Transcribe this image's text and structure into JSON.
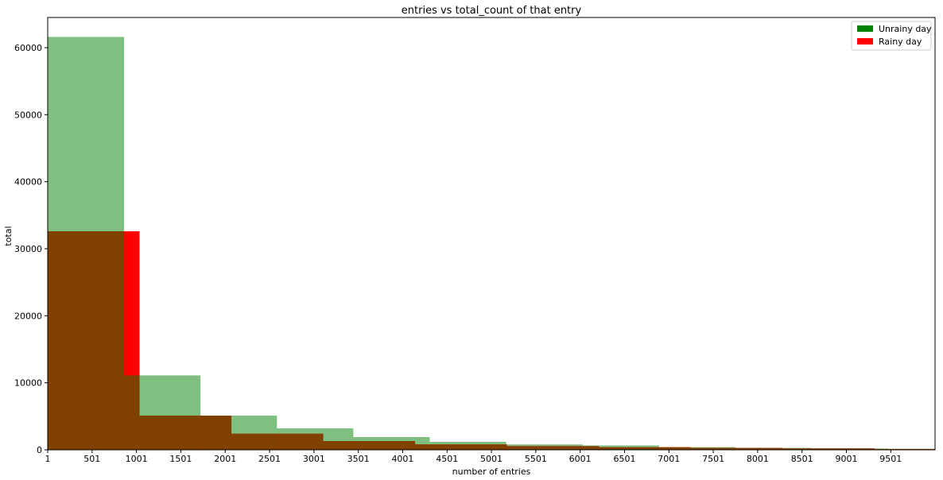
{
  "chart_data": {
    "type": "bar",
    "title": "entries vs total_count of that entry",
    "xlabel": "number of entries",
    "ylabel": "total",
    "xlim": [
      1,
      10000
    ],
    "ylim": [
      0,
      64500
    ],
    "x_ticks": [
      1,
      501,
      1001,
      1501,
      2001,
      2501,
      3001,
      3501,
      4001,
      4501,
      5001,
      5501,
      6001,
      6501,
      7001,
      7501,
      8001,
      8501,
      9001,
      9501
    ],
    "y_ticks": [
      0,
      10000,
      20000,
      30000,
      40000,
      50000,
      60000
    ],
    "grid": false,
    "legend_position": "top-right",
    "series": [
      {
        "name": "Unrainy day",
        "color": "#008000",
        "opacity": 0.5,
        "bins": [
          {
            "x0": 1,
            "x1": 862,
            "value": 61600
          },
          {
            "x0": 862,
            "x1": 1723,
            "value": 11100
          },
          {
            "x0": 1723,
            "x1": 2584,
            "value": 5100
          },
          {
            "x0": 2584,
            "x1": 3445,
            "value": 3200
          },
          {
            "x0": 3445,
            "x1": 4306,
            "value": 1900
          },
          {
            "x0": 4306,
            "x1": 5167,
            "value": 1200
          },
          {
            "x0": 5167,
            "x1": 6028,
            "value": 800
          },
          {
            "x0": 6028,
            "x1": 6889,
            "value": 650
          },
          {
            "x0": 6889,
            "x1": 7750,
            "value": 400
          },
          {
            "x0": 7750,
            "x1": 8611,
            "value": 280
          },
          {
            "x0": 8611,
            "x1": 9472,
            "value": 200
          },
          {
            "x0": 9472,
            "x1": 10000,
            "value": 150
          }
        ]
      },
      {
        "name": "Rainy day",
        "color": "#ff0000",
        "opacity": 1.0,
        "bins": [
          {
            "x0": 1,
            "x1": 1036,
            "value": 32600
          },
          {
            "x0": 1036,
            "x1": 2071,
            "value": 5100
          },
          {
            "x0": 2071,
            "x1": 3106,
            "value": 2400
          },
          {
            "x0": 3106,
            "x1": 4141,
            "value": 1300
          },
          {
            "x0": 4141,
            "x1": 5176,
            "value": 800
          },
          {
            "x0": 5176,
            "x1": 6211,
            "value": 550
          },
          {
            "x0": 6211,
            "x1": 7246,
            "value": 380
          },
          {
            "x0": 7246,
            "x1": 8281,
            "value": 280
          },
          {
            "x0": 8281,
            "x1": 9316,
            "value": 200
          },
          {
            "x0": 9316,
            "x1": 10000,
            "value": 100
          }
        ]
      }
    ],
    "overlap_color": "#804000"
  }
}
